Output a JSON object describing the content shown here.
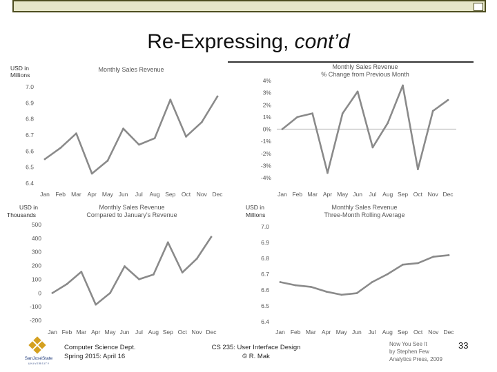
{
  "slide": {
    "title_main": "Re-Expressing, ",
    "title_italic": "cont’d",
    "page_number": "33",
    "footer_left_1": "Computer Science Dept.",
    "footer_left_2": "Spring 2015: April 16",
    "footer_center_1": "CS 235: User Interface Design",
    "footer_center_2": "© R. Mak",
    "credit_1": "Now You See It",
    "credit_2": "by Stephen Few",
    "credit_3": "Analytics Press, 2009",
    "logo_text_1": "SanJoséState",
    "logo_text_2": "U N I V E R S I T Y"
  },
  "colors": {
    "line": "#8a8a8a",
    "zero": "#c0c0c0",
    "text": "#555555"
  },
  "chart_data": [
    {
      "type": "line",
      "title": "Monthly Sales Revenue",
      "ylabel_1": "USD in",
      "ylabel_2": "Millions",
      "categories": [
        "Jan",
        "Feb",
        "Mar",
        "Apr",
        "May",
        "Jun",
        "Jul",
        "Aug",
        "Sep",
        "Oct",
        "Nov",
        "Dec"
      ],
      "values": [
        6.55,
        6.62,
        6.71,
        6.46,
        6.54,
        6.74,
        6.64,
        6.68,
        6.92,
        6.69,
        6.78,
        6.94
      ],
      "ylim": [
        6.4,
        7.0
      ],
      "yticks": [
        6.4,
        6.5,
        6.6,
        6.7,
        6.8,
        6.9,
        7.0
      ],
      "ytick_labels": [
        "6.4",
        "6.5",
        "6.6",
        "6.7",
        "6.8",
        "6.9",
        "7.0"
      ],
      "zero_line": false
    },
    {
      "type": "line",
      "title": "Monthly Sales Revenue",
      "subtitle": "% Change from Previous Month",
      "categories": [
        "Jan",
        "Feb",
        "Mar",
        "Apr",
        "May",
        "Jun",
        "Jul",
        "Aug",
        "Sep",
        "Oct",
        "Nov",
        "Dec"
      ],
      "values": [
        0.0,
        1.0,
        1.3,
        -3.6,
        1.3,
        3.1,
        -1.5,
        0.5,
        3.6,
        -3.3,
        1.5,
        2.4
      ],
      "ylim": [
        -4,
        4
      ],
      "yticks": [
        -4,
        -3,
        -2,
        -1,
        0,
        1,
        2,
        3,
        4
      ],
      "ytick_labels": [
        "-4%",
        "-3%",
        "-2%",
        "-1%",
        "0%",
        "1%",
        "2%",
        "3%",
        "4%"
      ],
      "zero_line": true
    },
    {
      "type": "line",
      "title": "Monthly Sales Revenue",
      "subtitle": "Compared to January's Revenue",
      "ylabel_1": "USD in",
      "ylabel_2": "Thousands",
      "categories": [
        "Jan",
        "Feb",
        "Mar",
        "Apr",
        "May",
        "Jun",
        "Jul",
        "Aug",
        "Sep",
        "Oct",
        "Nov",
        "Dec"
      ],
      "values": [
        0,
        65,
        155,
        -85,
        0,
        195,
        100,
        135,
        370,
        150,
        250,
        410
      ],
      "ylim": [
        -200,
        500
      ],
      "yticks": [
        -200,
        -100,
        0,
        100,
        200,
        300,
        400,
        500
      ],
      "ytick_labels": [
        "-200",
        "-100",
        "0",
        "100",
        "200",
        "300",
        "400",
        "500"
      ],
      "zero_line": false
    },
    {
      "type": "line",
      "title": "Monthly Sales Revenue",
      "subtitle": "Three-Month Rolling Average",
      "ylabel_1": "USD in",
      "ylabel_2": "Millions",
      "categories": [
        "Jan",
        "Feb",
        "Mar",
        "Apr",
        "May",
        "Jun",
        "Jul",
        "Aug",
        "Sep",
        "Oct",
        "Nov",
        "Dec"
      ],
      "values": [
        6.65,
        6.63,
        6.62,
        6.59,
        6.57,
        6.58,
        6.65,
        6.7,
        6.76,
        6.77,
        6.81,
        6.82
      ],
      "ylim": [
        6.4,
        7.0
      ],
      "yticks": [
        6.4,
        6.5,
        6.6,
        6.7,
        6.8,
        6.9,
        7.0
      ],
      "ytick_labels": [
        "6.4",
        "6.5",
        "6.6",
        "6.7",
        "6.8",
        "6.9",
        "7.0"
      ],
      "zero_line": false
    }
  ]
}
